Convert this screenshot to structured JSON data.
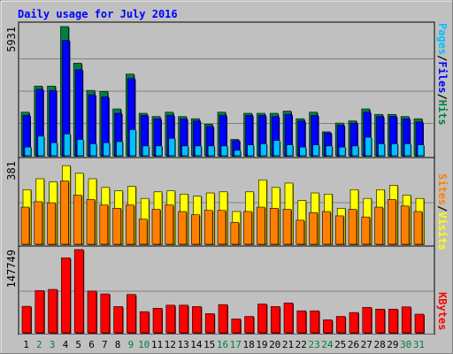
{
  "chart_data": [
    {
      "type": "bar",
      "title": "Daily usage for July 2016",
      "ylabel_parts": [
        "Pages",
        "Files",
        "Hits"
      ],
      "ymax_label": "5931",
      "ylim": [
        0,
        5931
      ],
      "categories": [
        "1",
        "2",
        "3",
        "4",
        "5",
        "6",
        "7",
        "8",
        "9",
        "10",
        "11",
        "12",
        "13",
        "14",
        "15",
        "16",
        "17",
        "18",
        "19",
        "20",
        "21",
        "22",
        "23",
        "24",
        "25",
        "26",
        "27",
        "28",
        "29",
        "30",
        "31"
      ],
      "weekend_days": [
        "2",
        "3",
        "9",
        "10",
        "16",
        "17",
        "23",
        "24",
        "30",
        "31"
      ],
      "series": [
        {
          "name": "Hits",
          "color": "#008040",
          "values": [
            2000,
            3200,
            3200,
            5931,
            4250,
            3000,
            2950,
            2150,
            3750,
            1950,
            1800,
            2000,
            1800,
            1700,
            1450,
            2000,
            750,
            1950,
            1950,
            1950,
            2050,
            1700,
            2000,
            1100,
            1500,
            1600,
            2150,
            1900,
            1900,
            1800,
            1700
          ]
        },
        {
          "name": "Files",
          "color": "#0000ff",
          "values": [
            1850,
            3050,
            3000,
            5300,
            3950,
            2800,
            2700,
            1950,
            3550,
            1850,
            1700,
            1850,
            1700,
            1600,
            1350,
            1850,
            700,
            1850,
            1850,
            1800,
            1900,
            1600,
            1850,
            1050,
            1400,
            1500,
            2000,
            1800,
            1800,
            1700,
            1550
          ]
        },
        {
          "name": "Pages",
          "color": "#00c0ff",
          "values": [
            400,
            900,
            600,
            1000,
            750,
            550,
            600,
            650,
            1200,
            450,
            450,
            800,
            450,
            450,
            450,
            450,
            250,
            500,
            550,
            700,
            500,
            400,
            500,
            450,
            400,
            450,
            850,
            550,
            550,
            550,
            500
          ]
        }
      ]
    },
    {
      "type": "bar",
      "ylabel_parts": [
        "Sites",
        "Visits"
      ],
      "ymax_label": "381",
      "ylim": [
        0,
        381
      ],
      "categories": [
        "1",
        "2",
        "3",
        "4",
        "5",
        "6",
        "7",
        "8",
        "9",
        "10",
        "11",
        "12",
        "13",
        "14",
        "15",
        "16",
        "17",
        "18",
        "19",
        "20",
        "21",
        "22",
        "23",
        "24",
        "25",
        "26",
        "27",
        "28",
        "29",
        "30",
        "31"
      ],
      "series": [
        {
          "name": "Visits",
          "color": "#ffff00",
          "values": [
            250,
            300,
            285,
            360,
            325,
            300,
            260,
            245,
            265,
            210,
            240,
            245,
            230,
            220,
            235,
            240,
            150,
            240,
            295,
            260,
            280,
            200,
            235,
            230,
            165,
            250,
            210,
            250,
            270,
            225,
            210
          ]
        },
        {
          "name": "Sites",
          "color": "#ff8000",
          "values": [
            170,
            195,
            190,
            290,
            225,
            205,
            180,
            165,
            180,
            115,
            160,
            180,
            150,
            135,
            155,
            155,
            100,
            150,
            170,
            165,
            160,
            110,
            145,
            150,
            130,
            160,
            125,
            170,
            205,
            175,
            150
          ]
        }
      ]
    },
    {
      "type": "bar",
      "ylabel_parts": [
        "KBytes"
      ],
      "ymax_label": "147749",
      "ylim": [
        0,
        147749
      ],
      "categories": [
        "1",
        "2",
        "3",
        "4",
        "5",
        "6",
        "7",
        "8",
        "9",
        "10",
        "11",
        "12",
        "13",
        "14",
        "15",
        "16",
        "17",
        "18",
        "19",
        "20",
        "21",
        "22",
        "23",
        "24",
        "25",
        "26",
        "27",
        "28",
        "29",
        "30",
        "31"
      ],
      "series": [
        {
          "name": "KBytes",
          "color": "#ff0000",
          "values": [
            47000,
            75000,
            77000,
            133000,
            147749,
            74000,
            69000,
            46500,
            68000,
            37500,
            43500,
            49000,
            49000,
            46500,
            34000,
            50000,
            24500,
            29000,
            51000,
            46500,
            53000,
            39000,
            39000,
            23000,
            29000,
            36000,
            45000,
            42000,
            42000,
            46000,
            33000
          ]
        }
      ]
    }
  ]
}
